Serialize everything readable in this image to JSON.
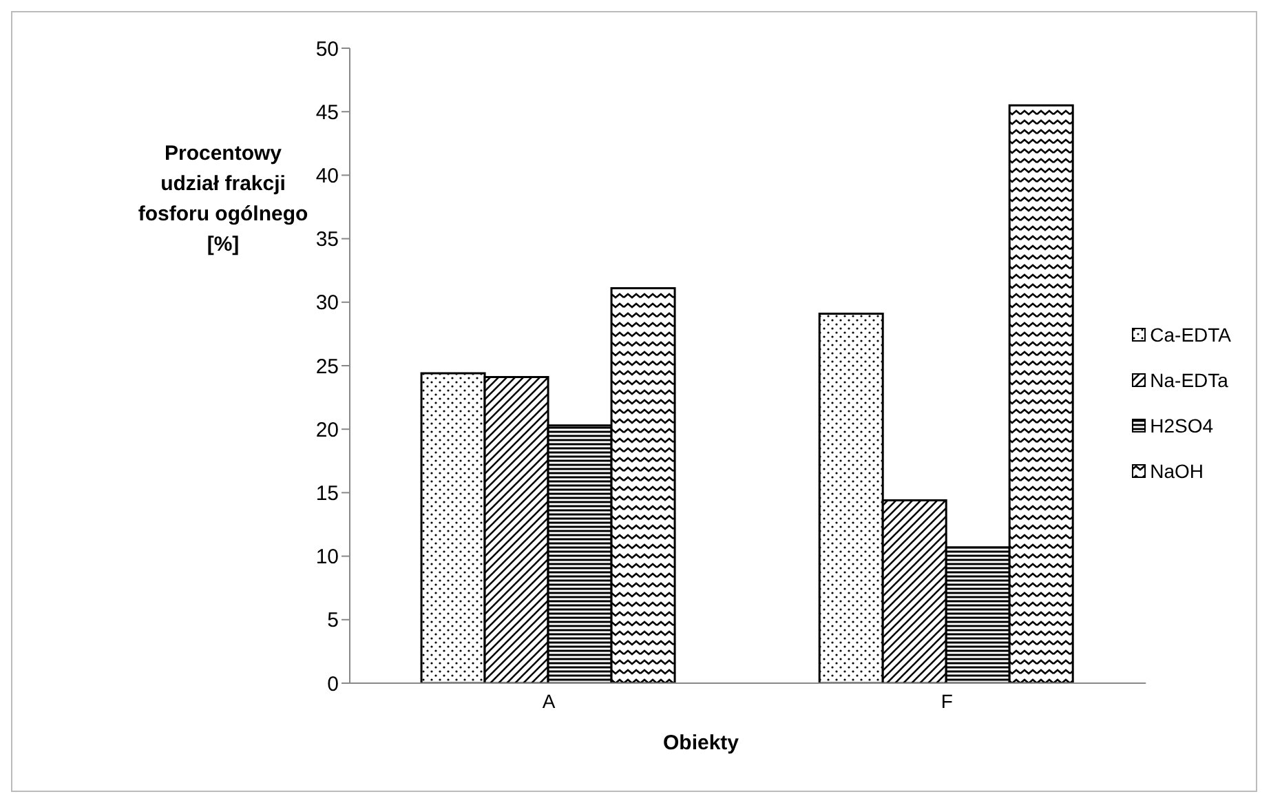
{
  "chart_data": {
    "type": "bar",
    "xlabel": "Obiekty",
    "ylabel": "Procentowy udział frakcji fosforu ogólnego [%]",
    "categories": [
      "A",
      "F"
    ],
    "series": [
      {
        "name": "Ca-EDTA",
        "color": "#000000",
        "values": [
          24.4,
          29.1
        ]
      },
      {
        "name": "Na-EDTa",
        "color": "#000000",
        "values": [
          24.1,
          14.4
        ]
      },
      {
        "name": "H2SO4",
        "color": "#000000",
        "values": [
          20.3,
          10.7
        ]
      },
      {
        "name": "NaOH",
        "color": "#000000",
        "values": [
          31.1,
          45.5
        ]
      }
    ],
    "ylim": [
      0,
      50
    ],
    "yticks": [
      0,
      5,
      10,
      15,
      20,
      25,
      30,
      35,
      40,
      45,
      50
    ],
    "grid": false,
    "legend": "right"
  }
}
